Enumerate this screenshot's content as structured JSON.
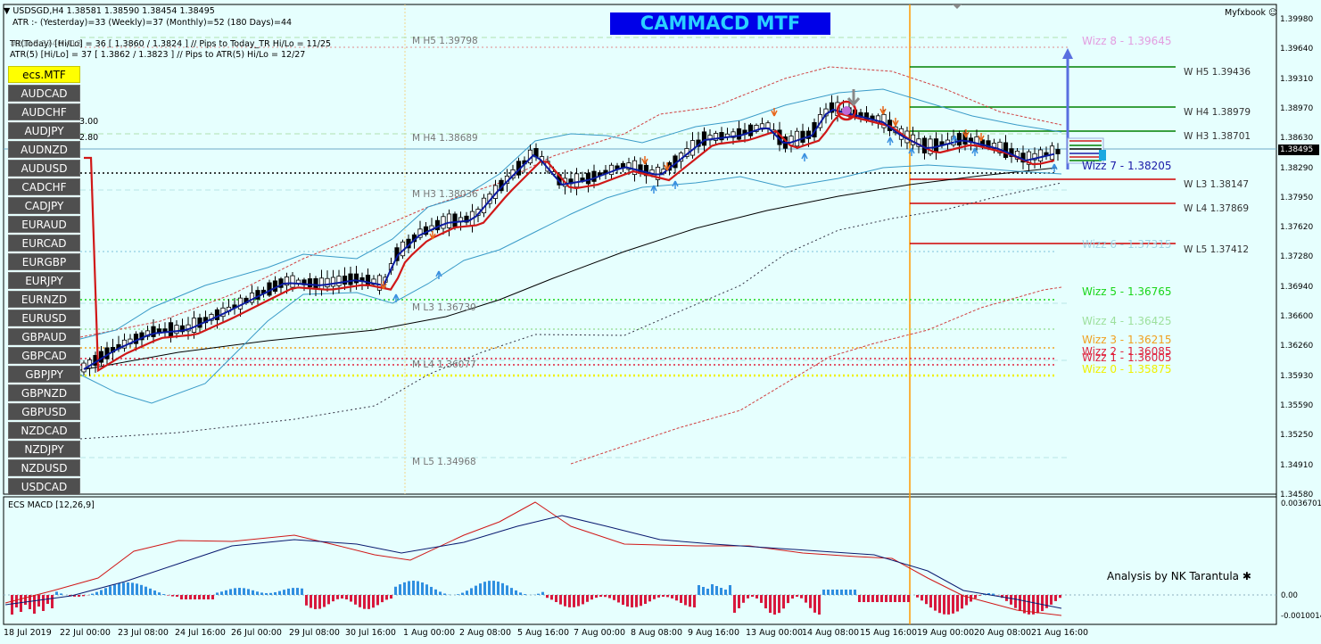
{
  "header": {
    "symbol_line": "USDSGD,H4  1.38581 1.38590 1.38454 1.38495",
    "atr_line": "ATR :- (Yesterday)=33      (Weekly)=37      (Monthly)=52      (180 Days)=44",
    "tr_line": "TR(Today)     [Hi/Lo]     = 36 [ 1.3860 / 1.3824 ]  // Pips to Today_TR Hi/Lo  = 11/25",
    "tr_overlay": "#2118 3740 413",
    "atr5_line": "ATR(5)       [Hi/Lo] = 37 [ 1.3862 / 1.3823 ]  //  Pips to ATR(5) Hi/Lo     = 12/27",
    "brand": "Myfxbook",
    "title_badge": "CAMMACD MTF",
    "small_300": "3.00",
    "small_280": "2.80"
  },
  "pair_buttons": [
    "ecs.MTF",
    "AUDCAD",
    "AUDCHF",
    "AUDJPY",
    "AUDNZD",
    "AUDUSD",
    "CADCHF",
    "CADJPY",
    "EURAUD",
    "EURCAD",
    "EURGBP",
    "EURJPY",
    "EURNZD",
    "EURUSD",
    "GBPAUD",
    "GBPCAD",
    "GBPJPY",
    "GBPNZD",
    "GBPUSD",
    "NZDCAD",
    "NZDJPY",
    "NZDUSD",
    "USDCAD"
  ],
  "levels": {
    "monthly": [
      "M  H5 1.39798",
      "M  H4 1.38689",
      "M  H3 1.38036",
      "M  L3 1.36730",
      "M  L4 1.36077",
      "M  L5 1.34968"
    ],
    "weekly": [
      "W  H5 1.39436",
      "W  H4 1.38979",
      "W  H3 1.38701",
      "W  L3 1.38147",
      "W  L4 1.37869",
      "W  L5 1.37412"
    ],
    "wizz": [
      "Wizz 8 - 1.39645",
      "Wizz 7 - 1.38205",
      "Wizz 6 - 1.37315",
      "Wizz 5 - 1.36765",
      "Wizz 4 - 1.36425",
      "Wizz 3 - 1.36215",
      "Wizz 2 - 1.36085",
      "Wizz 1 - 1.36005",
      "Wizz 0 - 1.35875"
    ],
    "colors": {
      "monthly": "#808080",
      "weekly_high": "#008000",
      "weekly_low": "#d00000",
      "wizz8": "#e39de0",
      "wizz7": "#1a1aa8",
      "wizz6": "#9fd6e6",
      "wizz5": "#19d619",
      "wizz4": "#9de09d",
      "wizz3": "#f0a020",
      "wizz2": "#e0203c",
      "wizz1": "#e0203c",
      "wizz0": "#f0f000"
    }
  },
  "price_axis": [
    "1.39980",
    "1.39640",
    "1.39310",
    "1.38970",
    "1.38630",
    "1.38290",
    "1.37950",
    "1.37620",
    "1.37280",
    "1.36940",
    "1.36600",
    "1.36260",
    "1.35930",
    "1.35590",
    "1.35250",
    "1.34910",
    "1.34580"
  ],
  "current_price": "1.38495",
  "macd": {
    "label": "ECS MACD [12,26,9]",
    "axis": [
      "0.0036701",
      "0.00",
      "-0.0010014"
    ],
    "credit": "Analysis by NK Tarantula"
  },
  "time_axis": [
    "18 Jul 2019",
    "22 Jul 00:00",
    "23 Jul 08:00",
    "24 Jul 16:00",
    "26 Jul 00:00",
    "29 Jul 08:00",
    "30 Jul 16:00",
    "1 Aug 00:00",
    "2 Aug 08:00",
    "5 Aug 16:00",
    "7 Aug 00:00",
    "8 Aug 08:00",
    "9 Aug 16:00",
    "13 Aug 00:00",
    "14 Aug 08:00",
    "15 Aug 16:00",
    "19 Aug 00:00",
    "20 Aug 08:00",
    "21 Aug 16:00"
  ]
}
